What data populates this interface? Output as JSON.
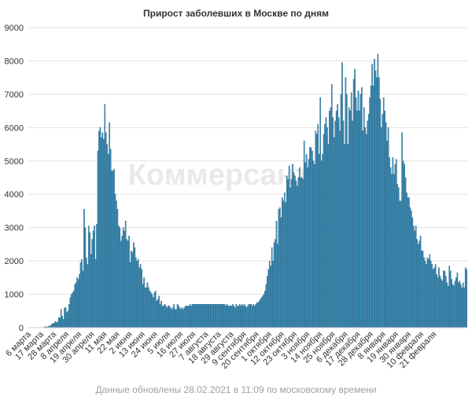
{
  "title": "Прирост заболевших в Москве по дням",
  "watermark": "Коммерсант",
  "footer": "Данные обновлены 28.02.2021 в 11:09 по московскому времени",
  "colors": {
    "bar": "#3f8fb8",
    "bar_edge": "#1d5d7f",
    "grid": "#e3e3e3",
    "text": "#333333"
  },
  "chart_data": {
    "type": "bar",
    "title": "Прирост заболевших в Москве по дням",
    "xlabel": "",
    "ylabel": "",
    "ylim": [
      0,
      9000
    ],
    "grid": true,
    "yticks": [
      0,
      1000,
      2000,
      3000,
      4000,
      5000,
      6000,
      7000,
      8000,
      9000
    ],
    "x_tick_labels": [
      "6 марта",
      "17 марта",
      "28 марта",
      "8 апреля",
      "19 апреля",
      "30 апреля",
      "11 мая",
      "22 мая",
      "2 июня",
      "13 июня",
      "24 июня",
      "5 июля",
      "16 июля",
      "27 июля",
      "7 августа",
      "18 августа",
      "29 августа",
      "9 сентября",
      "20 сентября",
      "1 октября",
      "12 октября",
      "23 октября",
      "3 ноября",
      "14 ноября",
      "25 ноября",
      "6 декабря",
      "17 декабря",
      "28 декабря",
      "8 января",
      "19 января",
      "30 января",
      "10 февраля",
      "21 февраля"
    ],
    "x_start_date": "6 марта 2020",
    "x_end_date": "27 февраля 2021",
    "values": [
      0,
      0,
      0,
      0,
      0,
      0,
      0,
      0,
      0,
      0,
      0,
      0,
      0,
      10,
      20,
      30,
      15,
      40,
      50,
      60,
      110,
      120,
      140,
      190,
      150,
      170,
      300,
      300,
      550,
      350,
      250,
      590,
      600,
      450,
      500,
      700,
      900,
      1000,
      1050,
      1100,
      1300,
      1350,
      1500,
      1450,
      1600,
      1950,
      2050,
      1700,
      3550,
      3000,
      2100,
      1900,
      3050,
      2850,
      2200,
      2650,
      2900,
      3050,
      2050,
      3100,
      5300,
      5900,
      6000,
      5700,
      5850,
      5650,
      6700,
      5850,
      5500,
      5200,
      6150,
      5350,
      4700,
      4700,
      4750,
      4000,
      3800,
      3550,
      3050,
      3000,
      2600,
      2750,
      3000,
      2900,
      3200,
      2650,
      2600,
      2750,
      1950,
      2300,
      2250,
      2550,
      2400,
      2100,
      2000,
      2050,
      1800,
      1900,
      1750,
      1300,
      1500,
      1200,
      1200,
      1350,
      1200,
      1100,
      1050,
      1000,
      900,
      1050,
      1100,
      800,
      850,
      950,
      700,
      800,
      650,
      650,
      700,
      650,
      600,
      650,
      650,
      600,
      550,
      600,
      700,
      550,
      550,
      700,
      650,
      600,
      550,
      600,
      550,
      600,
      650,
      650,
      650,
      650,
      700,
      650,
      700,
      700,
      700,
      700,
      700,
      700,
      700,
      700,
      700,
      700,
      700,
      700,
      700,
      700,
      700,
      700,
      700,
      700,
      700,
      700,
      700,
      700,
      700,
      700,
      700,
      700,
      700,
      700,
      700,
      650,
      700,
      650,
      650,
      650,
      650,
      700,
      650,
      600,
      700,
      650,
      650,
      700,
      650,
      700,
      650,
      700,
      650,
      600,
      650,
      700,
      700,
      700,
      650,
      700,
      650,
      700,
      750,
      750,
      800,
      850,
      900,
      950,
      1000,
      1100,
      1300,
      1550,
      1750,
      2000,
      1850,
      2400,
      2000,
      2550,
      2650,
      3200,
      2500,
      3550,
      3600,
      3300,
      3900,
      3800,
      4050,
      3750,
      4550,
      4450,
      4850,
      4200,
      4450,
      4900,
      4650,
      4550,
      4400,
      4250,
      4500,
      4800,
      4500,
      4500,
      4450,
      5600,
      4950,
      5200,
      4800,
      5050,
      5400,
      5400,
      5300,
      5000,
      4900,
      5900,
      5800,
      6100,
      5200,
      6900,
      5000,
      5200,
      5800,
      6100,
      6300,
      6000,
      5500,
      6500,
      6600,
      7300,
      6300,
      5700,
      6200,
      6500,
      6700,
      6300,
      5900,
      7000,
      7950,
      6200,
      5500,
      7500,
      7000,
      5500,
      6600,
      6500,
      7050,
      6200,
      7450,
      7750,
      6900,
      6500,
      7100,
      6500,
      7000,
      7200,
      5900,
      6600,
      6000,
      5800,
      6200,
      6400,
      6900,
      7250,
      7900,
      7250,
      8050,
      7700,
      7500,
      8200,
      7500,
      6850,
      6000,
      6400,
      6900,
      6500,
      6150,
      5600,
      6000,
      5100,
      4800,
      4600,
      5100,
      4600,
      4900,
      5050,
      4300,
      4200,
      3800,
      3800,
      5850,
      5000,
      4900,
      4500,
      4050,
      3900,
      3900,
      3600,
      3500,
      3300,
      3050,
      2900,
      3050,
      2650,
      2500,
      2600,
      2750,
      2300,
      2300,
      2100,
      2000,
      1900,
      2100,
      2050,
      2200,
      2000,
      1900,
      1750,
      1800,
      1900,
      1600,
      1500,
      1800,
      1550,
      1450,
      1400,
      1700,
      1700,
      1550,
      1350,
      1250,
      1850,
      1700,
      1450,
      1300,
      1250,
      1400,
      1500,
      1650,
      1350,
      1400,
      1300,
      1200,
      1350,
      1200,
      1800,
      1750
    ]
  }
}
